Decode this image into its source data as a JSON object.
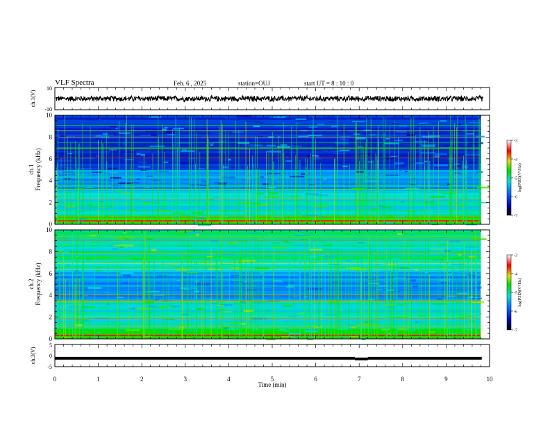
{
  "header": {
    "title": "VLF Spectra",
    "date": "Feb. 6 , 2025",
    "station": "station=OUJ",
    "start_ut": "start UT =  8 : 10 : 0"
  },
  "chart_data": [
    {
      "type": "line",
      "name": "ch1-waveform",
      "ylabel": "ch.1(V)",
      "ylim": [
        -10,
        10
      ],
      "yticks": [
        "10",
        "-10"
      ],
      "xlim": [
        0,
        10
      ],
      "approx_amplitude": 3
    },
    {
      "type": "heatmap",
      "name": "ch1-spectrogram",
      "ylabel": "ch.1",
      "ylabel2": "Frequency (kHz)",
      "ylim": [
        0,
        10
      ],
      "yticks": [
        "0",
        "2",
        "4",
        "6",
        "8",
        "10"
      ],
      "xlim": [
        0,
        9.8
      ],
      "colorbar": {
        "label": "log(PSD)(V²/Hz)",
        "range": [
          -7,
          -3
        ],
        "ticks": [
          "-3",
          "-4",
          "-5",
          "-6",
          "-7"
        ]
      }
    },
    {
      "type": "heatmap",
      "name": "ch2-spectrogram",
      "ylabel": "ch.2",
      "ylabel2": "Frequency (kHz)",
      "ylim": [
        0,
        10
      ],
      "yticks": [
        "0",
        "2",
        "4",
        "6",
        "8",
        "10"
      ],
      "xlim": [
        0,
        9.8
      ],
      "colorbar": {
        "label": "log(PSD)(V²/Hz)",
        "range": [
          -7,
          -3
        ],
        "ticks": [
          "-3",
          "-4",
          "-5",
          "-6",
          "-7"
        ]
      }
    },
    {
      "type": "line",
      "name": "ch3-signal",
      "ylabel": "ch.3(V)",
      "ylim": [
        -5,
        5
      ],
      "yticks": [
        "5",
        "0",
        "-5"
      ],
      "xlim": [
        0,
        10
      ],
      "approx_level": -1.2,
      "gap_minutes": [
        6.9,
        7.2
      ]
    }
  ],
  "xaxis": {
    "label": "Time (min)",
    "ticks": [
      "0",
      "1",
      "2",
      "3",
      "4",
      "5",
      "6",
      "7",
      "8",
      "9",
      "10"
    ]
  }
}
